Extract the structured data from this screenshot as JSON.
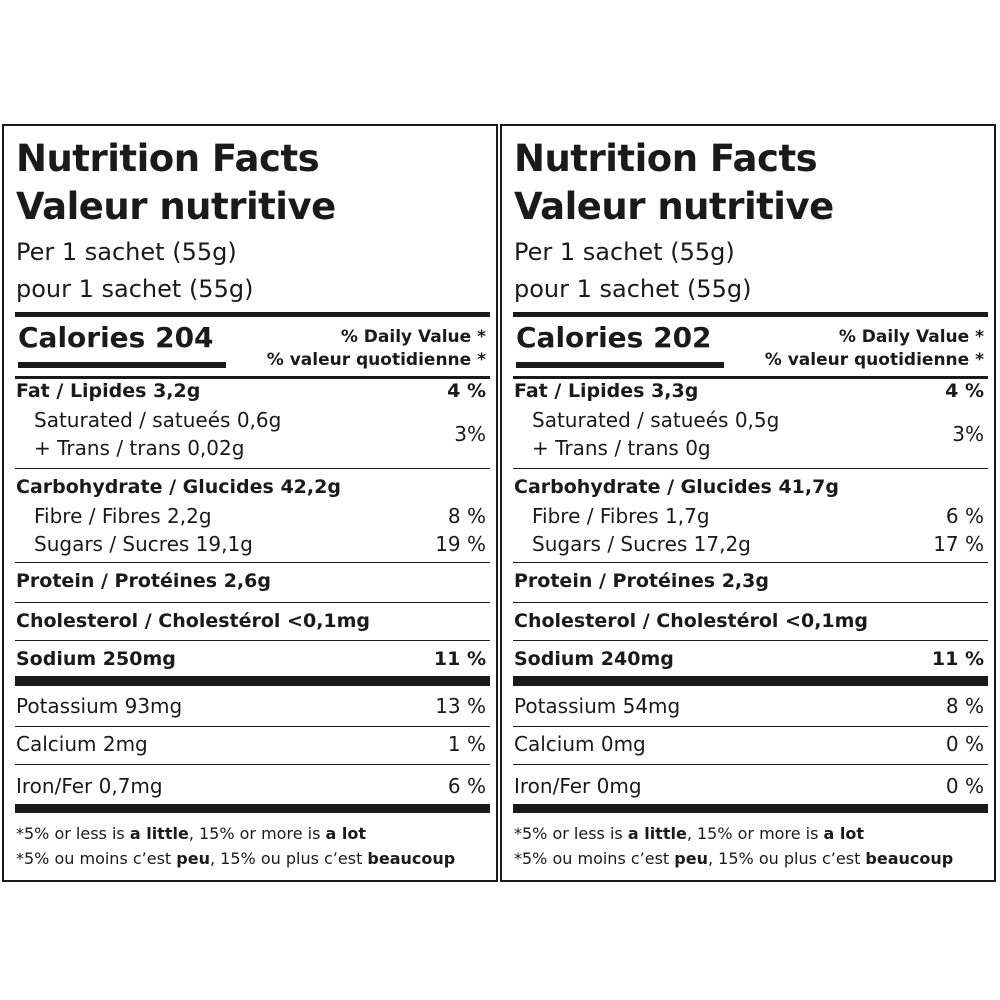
{
  "panels": [
    {
      "title_en": "Nutrition Facts",
      "title_fr": "Valeur nutritive",
      "serving_en": "Per 1 sachet (55g)",
      "serving_fr": "pour 1 sachet (55g)",
      "calories": "Calories 204",
      "dv_en": "% Daily Value *",
      "dv_fr": "% valeur quotidienne *",
      "fat": "Fat / Lipides 3,2g",
      "fat_dv": "4 %",
      "saturated": "Saturated / satueés 0,6g",
      "trans": "+ Trans / trans 0,02g",
      "sat_trans_dv": "3%",
      "carb": "Carbohydrate / Glucides 42,2g",
      "fibre": "Fibre / Fibres 2,2g",
      "fibre_dv": "8 %",
      "sugars": "Sugars / Sucres 19,1g",
      "sugars_dv": "19 %",
      "protein": "Protein / Protéines  2,6g",
      "cholesterol": "Cholesterol / Cholestérol <0,1mg",
      "sodium": "Sodium 250mg",
      "sodium_dv": "11 %",
      "potassium": "Potassium 93mg",
      "potassium_dv": "13 %",
      "calcium": "Calcium 2mg",
      "calcium_dv": "1 %",
      "iron": "Iron/Fer 0,7mg",
      "iron_dv": "6 %"
    },
    {
      "title_en": "Nutrition Facts",
      "title_fr": "Valeur nutritive",
      "serving_en": "Per 1 sachet (55g)",
      "serving_fr": "pour 1 sachet (55g)",
      "calories": "Calories 202",
      "dv_en": "% Daily Value *",
      "dv_fr": "% valeur quotidienne *",
      "fat": "Fat / Lipides 3,3g",
      "fat_dv": "4 %",
      "saturated": "Saturated / satueés 0,5g",
      "trans": "+ Trans / trans 0g",
      "sat_trans_dv": "3%",
      "carb": "Carbohydrate / Glucides 41,7g",
      "fibre": "Fibre / Fibres 1,7g",
      "fibre_dv": "6 %",
      "sugars": "Sugars / Sucres 17,2g",
      "sugars_dv": "17 %",
      "protein": "Protein / Protéines 2,3g",
      "cholesterol": "Cholesterol / Cholestérol <0,1mg",
      "sodium": "Sodium 240mg",
      "sodium_dv": "11 %",
      "potassium": "Potassium 54mg",
      "potassium_dv": "8 %",
      "calcium": "Calcium 0mg",
      "calcium_dv": "0 %",
      "iron": "Iron/Fer 0mg",
      "iron_dv": "0 %"
    }
  ],
  "footnote": {
    "en_prefix": "*5% or less is ",
    "en_little": "a little",
    "en_middle": ", 15% or more is ",
    "en_lot": "a lot",
    "fr_prefix": "*5% ou moins c’est ",
    "fr_peu": "peu",
    "fr_middle": ", 15% ou plus c’est ",
    "fr_beaucoup": "beaucoup"
  }
}
